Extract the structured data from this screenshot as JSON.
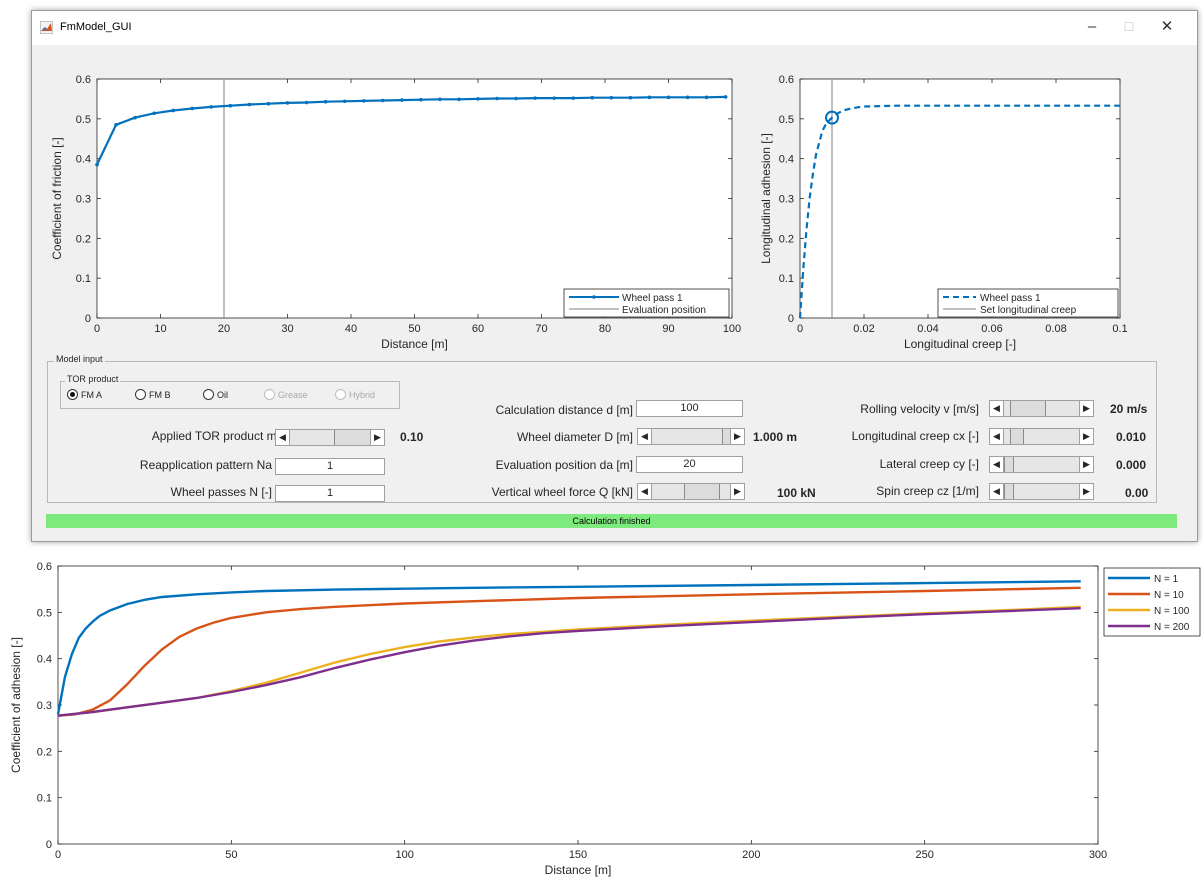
{
  "window": {
    "title": "FmModel_GUI",
    "min_symbol": "–",
    "max_symbol": "☐",
    "close_symbol": "✕"
  },
  "plot_friction": {
    "ylabel": "Coefficient of friction [-]",
    "xlabel": "Distance [m]",
    "xticks": [
      "0",
      "10",
      "20",
      "30",
      "40",
      "50",
      "60",
      "70",
      "80",
      "90",
      "100"
    ],
    "yticks": [
      "0",
      "0.1",
      "0.2",
      "0.3",
      "0.4",
      "0.5",
      "0.6"
    ],
    "legend": [
      "Wheel pass 1",
      "Evaluation position"
    ]
  },
  "plot_creep": {
    "ylabel": "Longitudinal adhesion [-]",
    "xlabel": "Longitudinal creep [-]",
    "xticks": [
      "0",
      "0.02",
      "0.04",
      "0.06",
      "0.08",
      "0.1"
    ],
    "yticks": [
      "0",
      "0.1",
      "0.2",
      "0.3",
      "0.4",
      "0.5",
      "0.6"
    ],
    "legend": [
      "Wheel pass 1",
      "Set longitudinal creep"
    ]
  },
  "model_input": {
    "title": "Model input",
    "tor_product": {
      "title": "TOR product",
      "options": [
        "FM A",
        "FM B",
        "Oil",
        "Grease",
        "Hybrid"
      ],
      "selected": "FM A"
    },
    "applied_mass_label": "Applied TOR product mass [g]",
    "applied_mass_value": "0.10",
    "reapplication_label": "Reapplication pattern Na",
    "reapplication_value": "1",
    "wheel_passes_label": "Wheel passes N [-]",
    "wheel_passes_value": "1",
    "calc_distance_label": "Calculation distance d [m]",
    "calc_distance_value": "100",
    "wheel_diameter_label": "Wheel diameter D [m]",
    "wheel_diameter_value": "1.000 m",
    "eval_position_label": "Evaluation position da [m]",
    "eval_position_value": "20",
    "vertical_force_label": "Vertical wheel force Q [kN]",
    "vertical_force_value": "100 kN",
    "rolling_velocity_label": "Rolling velocity v [m/s]",
    "rolling_velocity_value": "20 m/s",
    "long_creep_label": "Longitudinal creep cx [-]",
    "long_creep_value": "0.010",
    "lat_creep_label": "Lateral creep cy [-]",
    "lat_creep_value": "0.000",
    "spin_creep_label": "Spin creep cz [1/m]",
    "spin_creep_value": "0.00"
  },
  "status": {
    "text": "Calculation finished",
    "color": "#7dea7d"
  },
  "chart_data": [
    {
      "type": "line",
      "ylabel": "Coefficient of friction [-]",
      "xlabel": "Distance [m]",
      "xlim": [
        0,
        100
      ],
      "ylim": [
        0,
        0.6
      ],
      "series": [
        {
          "name": "Wheel pass 1",
          "color": "#0072bd",
          "x": [
            0,
            3,
            6,
            9,
            12,
            15,
            18,
            21,
            24,
            27,
            30,
            33,
            36,
            39,
            42,
            45,
            48,
            51,
            54,
            57,
            60,
            63,
            66,
            69,
            72,
            75,
            78,
            81,
            84,
            87,
            90,
            93,
            96,
            99
          ],
          "values": [
            0.385,
            0.485,
            0.503,
            0.514,
            0.521,
            0.526,
            0.53,
            0.533,
            0.536,
            0.538,
            0.54,
            0.541,
            0.543,
            0.544,
            0.545,
            0.546,
            0.547,
            0.548,
            0.549,
            0.549,
            0.55,
            0.551,
            0.551,
            0.552,
            0.552,
            0.552,
            0.553,
            0.553,
            0.553,
            0.554,
            0.554,
            0.554,
            0.554,
            0.555
          ]
        }
      ],
      "reference_x": {
        "name": "Evaluation position",
        "value": 20
      }
    },
    {
      "type": "line",
      "ylabel": "Longitudinal adhesion [-]",
      "xlabel": "Longitudinal creep [-]",
      "xlim": [
        0,
        0.1
      ],
      "ylim": [
        0,
        0.6
      ],
      "series": [
        {
          "name": "Wheel pass 1",
          "color": "#0072bd",
          "dashed": true,
          "x": [
            0,
            0.001,
            0.002,
            0.003,
            0.004,
            0.005,
            0.006,
            0.007,
            0.008,
            0.009,
            0.01,
            0.012,
            0.014,
            0.016,
            0.018,
            0.02,
            0.025,
            0.03,
            0.04,
            0.06,
            0.08,
            0.1
          ],
          "values": [
            0,
            0.12,
            0.22,
            0.3,
            0.36,
            0.41,
            0.44,
            0.47,
            0.485,
            0.495,
            0.503,
            0.515,
            0.522,
            0.526,
            0.529,
            0.531,
            0.532,
            0.533,
            0.533,
            0.533,
            0.533,
            0.533
          ]
        }
      ],
      "reference_x": {
        "name": "Set longitudinal creep",
        "value": 0.01
      },
      "marker": {
        "x": 0.01,
        "y": 0.503
      }
    },
    {
      "type": "line",
      "ylabel": "Coefficient of adhesion [-]",
      "xlabel": "Distance [m]",
      "xlim": [
        0,
        300
      ],
      "ylim": [
        0,
        0.6
      ],
      "xticks": [
        "0",
        "50",
        "100",
        "150",
        "200",
        "250",
        "300"
      ],
      "yticks": [
        "0",
        "0.1",
        "0.2",
        "0.3",
        "0.4",
        "0.5",
        "0.6"
      ],
      "legend_position": "outside-top-right",
      "series": [
        {
          "name": "N = 1",
          "color": "#0072bd",
          "x": [
            0,
            2,
            4,
            6,
            8,
            10,
            12,
            15,
            20,
            25,
            30,
            40,
            50,
            60,
            80,
            100,
            120,
            150,
            200,
            250,
            295
          ],
          "values": [
            0.28,
            0.36,
            0.41,
            0.445,
            0.465,
            0.48,
            0.492,
            0.504,
            0.518,
            0.527,
            0.533,
            0.539,
            0.543,
            0.546,
            0.549,
            0.551,
            0.553,
            0.555,
            0.559,
            0.563,
            0.567
          ]
        },
        {
          "name": "N = 10",
          "color": "#d95319",
          "x": [
            0,
            5,
            10,
            15,
            20,
            25,
            30,
            35,
            40,
            45,
            50,
            60,
            70,
            80,
            100,
            120,
            150,
            200,
            250,
            295
          ],
          "values": [
            0.277,
            0.28,
            0.29,
            0.31,
            0.345,
            0.385,
            0.42,
            0.447,
            0.465,
            0.478,
            0.488,
            0.5,
            0.507,
            0.512,
            0.519,
            0.524,
            0.531,
            0.539,
            0.546,
            0.553
          ]
        },
        {
          "name": "N = 100",
          "color": "#edb120",
          "x": [
            0,
            10,
            20,
            30,
            40,
            50,
            60,
            70,
            80,
            90,
            100,
            110,
            120,
            130,
            140,
            150,
            175,
            200,
            225,
            250,
            275,
            295
          ],
          "values": [
            0.277,
            0.285,
            0.295,
            0.305,
            0.315,
            0.33,
            0.348,
            0.37,
            0.392,
            0.41,
            0.425,
            0.437,
            0.446,
            0.453,
            0.458,
            0.463,
            0.473,
            0.482,
            0.49,
            0.498,
            0.505,
            0.512
          ]
        },
        {
          "name": "N = 200",
          "color": "#7e2f8e",
          "x": [
            0,
            10,
            20,
            30,
            40,
            50,
            60,
            70,
            80,
            90,
            100,
            110,
            120,
            130,
            140,
            150,
            175,
            200,
            225,
            250,
            275,
            295
          ],
          "values": [
            0.277,
            0.285,
            0.295,
            0.305,
            0.315,
            0.328,
            0.343,
            0.36,
            0.38,
            0.398,
            0.414,
            0.428,
            0.439,
            0.448,
            0.455,
            0.46,
            0.47,
            0.479,
            0.488,
            0.496,
            0.503,
            0.509
          ]
        }
      ]
    }
  ]
}
